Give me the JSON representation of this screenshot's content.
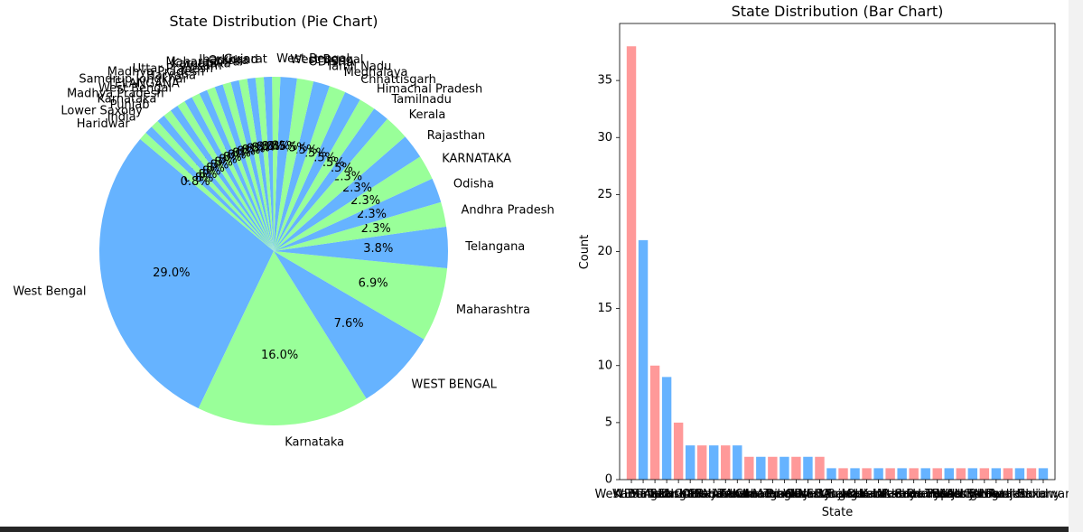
{
  "colors": {
    "pie": [
      "#66b3ff",
      "#99ff99"
    ],
    "bar": [
      "#ff9999",
      "#66b3ff"
    ]
  },
  "chart_data": [
    {
      "type": "pie",
      "title": "State Distribution (Pie Chart)",
      "startangle_deg": 140,
      "categories": [
        "West Bengal",
        "Karnataka",
        "WEST BENGAL",
        "Maharashtra",
        "Telangana",
        "Andhra Pradesh",
        "Odisha",
        "KARNATAKA",
        "Rajasthan",
        "Kerala",
        "Tamilnadu",
        "Himachal Pradesh",
        "Chhattisgarh",
        "Meghalaya",
        "Tamil Nadu",
        "ODISHA",
        "West Bengal",
        "West Bengal",
        "Gujarat",
        "Jharkhand",
        "Odisha",
        "Maharashtra",
        "Karnataka",
        "Assam",
        "Uttar Pradesh",
        "Madhya Pradesh",
        "Haryana",
        "Samdrup Jongkhar",
        "TELANGANA",
        "West Bengal",
        "Madhya Pradesh",
        "Karnataka",
        "Punjab",
        "Lower Saxony",
        "India",
        "Haridwar"
      ],
      "values": [
        38,
        21,
        10,
        9,
        5,
        3,
        3,
        3,
        3,
        3,
        2,
        2,
        2,
        2,
        2,
        2,
        2,
        1,
        1,
        1,
        1,
        1,
        1,
        1,
        1,
        1,
        1,
        1,
        1,
        1,
        1,
        1,
        1,
        1,
        1,
        1
      ],
      "value_labels": [
        "29.0%",
        "16.0%",
        "7.6%",
        "6.9%",
        "3.8%",
        "2.3%",
        "2.3%",
        "2.3%",
        "2.3%",
        "2.3%",
        "1.5%",
        "1.5%",
        "1.5%",
        "1.5%",
        "1.5%",
        "1.5%",
        "1.5%",
        "0.8%",
        "0.8%",
        "0.8%",
        "0.8%",
        "0.8%",
        "0.8%",
        "0.8%",
        "0.8%",
        "0.8%",
        "0.8%",
        "0.8%",
        "0.8%",
        "0.8%",
        "0.8%",
        "0.8%",
        "0.8%",
        "0.8%",
        "0.8%",
        "0.8%"
      ]
    },
    {
      "type": "bar",
      "title": "State Distribution (Bar Chart)",
      "xlabel": "State",
      "ylabel": "Count",
      "ylim": [
        0,
        40
      ],
      "yticks": [
        0,
        5,
        10,
        15,
        20,
        25,
        30,
        35
      ],
      "categories": [
        "West Bengal",
        "Karnataka",
        "WEST BENGAL",
        "Maharashtra",
        "Telangana",
        "Andhra Pradesh",
        "Odisha",
        "KARNATAKA",
        "Rajasthan",
        "Kerala",
        "Tamilnadu",
        "Himachal Pradesh",
        "Chhattisgarh",
        "Meghalaya",
        "Tamil Nadu",
        "ODISHA",
        "West Bengal",
        "West Bengal",
        "Gujarat",
        "Jharkhand",
        "Odisha",
        "Maharashtra",
        "Karnataka",
        "Assam",
        "Uttar Pradesh",
        "Madhya Pradesh",
        "Haryana",
        "Samdrup Jongkhar",
        "TELANGANA",
        "West Bengal",
        "Madhya Pradesh",
        "Karnataka",
        "Punjab",
        "Lower Saxony",
        "India",
        "Haridwar"
      ],
      "values": [
        38,
        21,
        10,
        9,
        5,
        3,
        3,
        3,
        3,
        3,
        2,
        2,
        2,
        2,
        2,
        2,
        2,
        1,
        1,
        1,
        1,
        1,
        1,
        1,
        1,
        1,
        1,
        1,
        1,
        1,
        1,
        1,
        1,
        1,
        1,
        1
      ]
    }
  ]
}
